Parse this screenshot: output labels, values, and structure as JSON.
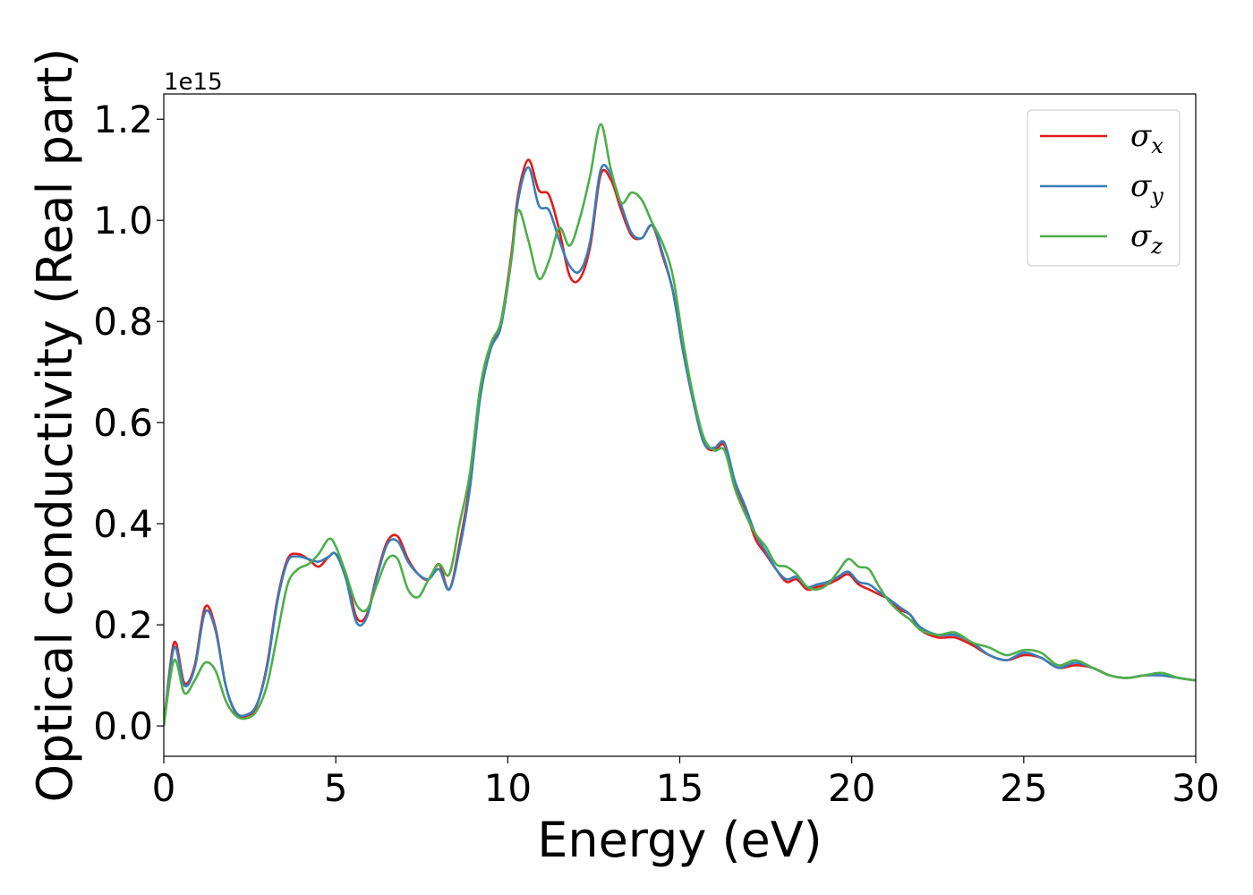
{
  "chart_data": {
    "type": "line",
    "title": "",
    "xlabel": "Energy (eV)",
    "ylabel": "Optical conductivity (Real part)",
    "y_offset_label": "1e15",
    "xlim": [
      0,
      30
    ],
    "ylim": [
      -0.06,
      1.25
    ],
    "xticks": [
      0,
      5,
      10,
      15,
      20,
      25,
      30
    ],
    "yticks": [
      0.0,
      0.2,
      0.4,
      0.6,
      0.8,
      1.0,
      1.2
    ],
    "xtick_labels": [
      "0",
      "5",
      "10",
      "15",
      "20",
      "25",
      "30"
    ],
    "ytick_labels": [
      "0.0",
      "0.2",
      "0.4",
      "0.6",
      "0.8",
      "1.0",
      "1.2"
    ],
    "grid": false,
    "legend_position": "top-right",
    "series": [
      {
        "name_symbol": "σ",
        "name_sub": "x",
        "color": "#e41a1c",
        "x": [
          0,
          0.3,
          0.6,
          0.9,
          1.2,
          1.5,
          1.8,
          2.1,
          2.4,
          2.7,
          3.0,
          3.3,
          3.6,
          3.9,
          4.2,
          4.5,
          4.8,
          5.0,
          5.3,
          5.6,
          5.9,
          6.2,
          6.5,
          6.8,
          7.1,
          7.4,
          7.7,
          8.0,
          8.3,
          8.6,
          8.9,
          9.2,
          9.5,
          9.8,
          10.1,
          10.3,
          10.6,
          10.9,
          11.2,
          11.5,
          11.8,
          12.1,
          12.4,
          12.7,
          13.0,
          13.3,
          13.6,
          13.9,
          14.2,
          14.5,
          14.8,
          15.1,
          15.4,
          15.7,
          16.0,
          16.3,
          16.6,
          16.9,
          17.2,
          17.5,
          17.8,
          18.1,
          18.4,
          18.7,
          19.0,
          19.3,
          19.6,
          19.9,
          20.2,
          20.5,
          20.8,
          21.1,
          21.4,
          21.7,
          22.0,
          22.5,
          23.0,
          23.5,
          24.0,
          24.5,
          25.0,
          25.5,
          26.0,
          26.5,
          27.0,
          27.5,
          28.0,
          28.5,
          29.0,
          29.5,
          30.0
        ],
        "y": [
          0.0,
          0.165,
          0.085,
          0.12,
          0.235,
          0.195,
          0.08,
          0.025,
          0.02,
          0.04,
          0.12,
          0.25,
          0.33,
          0.34,
          0.33,
          0.315,
          0.335,
          0.34,
          0.3,
          0.215,
          0.22,
          0.3,
          0.365,
          0.375,
          0.33,
          0.3,
          0.29,
          0.32,
          0.27,
          0.36,
          0.48,
          0.66,
          0.75,
          0.8,
          0.93,
          1.05,
          1.12,
          1.06,
          1.05,
          0.98,
          0.89,
          0.885,
          0.95,
          1.09,
          1.08,
          1.02,
          0.97,
          0.965,
          0.99,
          0.93,
          0.86,
          0.74,
          0.64,
          0.56,
          0.545,
          0.555,
          0.48,
          0.43,
          0.37,
          0.34,
          0.31,
          0.285,
          0.29,
          0.27,
          0.275,
          0.28,
          0.29,
          0.3,
          0.28,
          0.27,
          0.26,
          0.25,
          0.23,
          0.22,
          0.19,
          0.175,
          0.175,
          0.16,
          0.14,
          0.13,
          0.14,
          0.135,
          0.115,
          0.12,
          0.115,
          0.1,
          0.095,
          0.1,
          0.1,
          0.095,
          0.09
        ]
      },
      {
        "name_symbol": "σ",
        "name_sub": "y",
        "color": "#377eb8",
        "x": [
          0,
          0.3,
          0.6,
          0.9,
          1.2,
          1.5,
          1.8,
          2.1,
          2.4,
          2.7,
          3.0,
          3.3,
          3.6,
          3.9,
          4.2,
          4.5,
          4.8,
          5.0,
          5.3,
          5.6,
          5.9,
          6.2,
          6.5,
          6.8,
          7.1,
          7.4,
          7.7,
          8.0,
          8.3,
          8.6,
          8.9,
          9.2,
          9.5,
          9.8,
          10.1,
          10.3,
          10.6,
          10.9,
          11.2,
          11.5,
          11.8,
          12.1,
          12.4,
          12.7,
          13.0,
          13.3,
          13.6,
          13.9,
          14.2,
          14.5,
          14.8,
          15.1,
          15.4,
          15.7,
          16.0,
          16.3,
          16.6,
          16.9,
          17.2,
          17.5,
          17.8,
          18.1,
          18.4,
          18.7,
          19.0,
          19.3,
          19.6,
          19.9,
          20.2,
          20.5,
          20.8,
          21.1,
          21.4,
          21.7,
          22.0,
          22.5,
          23.0,
          23.5,
          24.0,
          24.5,
          25.0,
          25.5,
          26.0,
          26.5,
          27.0,
          27.5,
          28.0,
          28.5,
          29.0,
          29.5,
          30.0
        ],
        "y": [
          0.0,
          0.155,
          0.08,
          0.115,
          0.225,
          0.19,
          0.08,
          0.027,
          0.022,
          0.042,
          0.115,
          0.245,
          0.325,
          0.335,
          0.33,
          0.325,
          0.335,
          0.34,
          0.29,
          0.205,
          0.215,
          0.295,
          0.36,
          0.365,
          0.325,
          0.3,
          0.29,
          0.31,
          0.27,
          0.35,
          0.47,
          0.65,
          0.745,
          0.79,
          0.92,
          1.04,
          1.105,
          1.03,
          1.02,
          0.96,
          0.91,
          0.9,
          0.96,
          1.1,
          1.09,
          1.03,
          0.975,
          0.965,
          0.99,
          0.935,
          0.86,
          0.74,
          0.64,
          0.56,
          0.55,
          0.56,
          0.485,
          0.435,
          0.38,
          0.345,
          0.31,
          0.29,
          0.295,
          0.275,
          0.28,
          0.285,
          0.295,
          0.305,
          0.285,
          0.28,
          0.265,
          0.25,
          0.235,
          0.22,
          0.195,
          0.18,
          0.18,
          0.165,
          0.14,
          0.13,
          0.145,
          0.135,
          0.115,
          0.125,
          0.115,
          0.1,
          0.095,
          0.1,
          0.1,
          0.095,
          0.09
        ]
      },
      {
        "name_symbol": "σ",
        "name_sub": "z",
        "color": "#4daf4a",
        "x": [
          0,
          0.3,
          0.6,
          0.9,
          1.2,
          1.5,
          1.8,
          2.1,
          2.4,
          2.7,
          3.0,
          3.3,
          3.6,
          3.9,
          4.2,
          4.5,
          4.8,
          5.0,
          5.3,
          5.6,
          5.9,
          6.2,
          6.5,
          6.8,
          7.1,
          7.4,
          7.7,
          8.0,
          8.3,
          8.6,
          8.9,
          9.2,
          9.5,
          9.8,
          10.1,
          10.3,
          10.6,
          10.9,
          11.2,
          11.5,
          11.8,
          12.1,
          12.4,
          12.7,
          13.0,
          13.3,
          13.6,
          13.9,
          14.2,
          14.5,
          14.8,
          15.1,
          15.4,
          15.7,
          16.0,
          16.3,
          16.6,
          16.9,
          17.2,
          17.5,
          17.8,
          18.1,
          18.4,
          18.7,
          19.0,
          19.3,
          19.6,
          19.9,
          20.2,
          20.5,
          20.8,
          21.1,
          21.4,
          21.7,
          22.0,
          22.5,
          23.0,
          23.5,
          24.0,
          24.5,
          25.0,
          25.5,
          26.0,
          26.5,
          27.0,
          27.5,
          28.0,
          28.5,
          29.0,
          29.5,
          30.0
        ],
        "y": [
          0.0,
          0.13,
          0.065,
          0.09,
          0.125,
          0.11,
          0.05,
          0.02,
          0.015,
          0.03,
          0.08,
          0.18,
          0.28,
          0.31,
          0.32,
          0.34,
          0.37,
          0.355,
          0.3,
          0.24,
          0.23,
          0.28,
          0.33,
          0.33,
          0.27,
          0.255,
          0.29,
          0.32,
          0.3,
          0.4,
          0.5,
          0.67,
          0.755,
          0.8,
          0.92,
          1.02,
          0.96,
          0.885,
          0.92,
          0.985,
          0.95,
          1.005,
          1.09,
          1.19,
          1.1,
          1.035,
          1.055,
          1.04,
          0.995,
          0.955,
          0.89,
          0.76,
          0.65,
          0.57,
          0.545,
          0.545,
          0.47,
          0.42,
          0.38,
          0.355,
          0.32,
          0.315,
          0.3,
          0.275,
          0.27,
          0.28,
          0.305,
          0.33,
          0.315,
          0.31,
          0.275,
          0.245,
          0.225,
          0.21,
          0.19,
          0.18,
          0.185,
          0.165,
          0.155,
          0.14,
          0.15,
          0.145,
          0.12,
          0.13,
          0.115,
          0.1,
          0.095,
          0.1,
          0.105,
          0.095,
          0.09
        ]
      }
    ]
  }
}
